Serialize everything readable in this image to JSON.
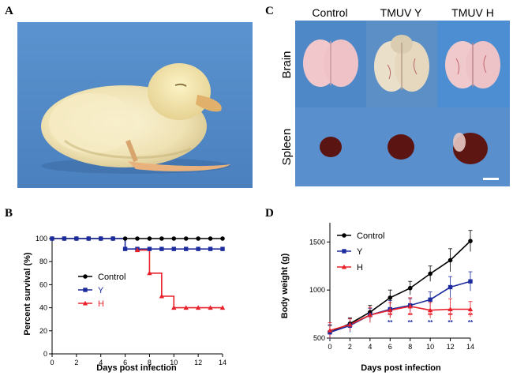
{
  "panel_letters": {
    "a": "A",
    "b": "B",
    "c": "C",
    "d": "D"
  },
  "panel_c": {
    "columns": [
      "Control",
      "TMUV Y",
      "TMUV H"
    ],
    "rows": [
      "Brain",
      "Spleen"
    ]
  },
  "colors": {
    "control": "#000000",
    "y": "#1c2b9e",
    "h": "#e8202a",
    "photo_bg": "#4f88c6"
  },
  "chart_data": [
    {
      "type": "line",
      "panel": "B",
      "xlabel": "Days post infection",
      "ylabel": "Percent survival (%)",
      "xlim": [
        0,
        14
      ],
      "ylim": [
        0,
        100
      ],
      "xticks": [
        0,
        2,
        4,
        6,
        8,
        10,
        12,
        14
      ],
      "yticks": [
        0,
        20,
        40,
        60,
        80,
        100
      ],
      "legend_position": "center",
      "step": true,
      "series": [
        {
          "name": "Control",
          "color": "#000000",
          "marker": "circle",
          "x": [
            0,
            1,
            2,
            3,
            4,
            5,
            6,
            7,
            8,
            9,
            10,
            11,
            12,
            13,
            14
          ],
          "y": [
            100,
            100,
            100,
            100,
            100,
            100,
            100,
            100,
            100,
            100,
            100,
            100,
            100,
            100,
            100
          ]
        },
        {
          "name": "Y",
          "color": "#1c2b9e",
          "marker": "square",
          "x": [
            0,
            1,
            2,
            3,
            4,
            5,
            6,
            7,
            8,
            9,
            10,
            11,
            12,
            13,
            14
          ],
          "y": [
            100,
            100,
            100,
            100,
            100,
            100,
            91,
            91,
            91,
            91,
            91,
            91,
            91,
            91,
            91
          ]
        },
        {
          "name": "H",
          "color": "#e8202a",
          "marker": "triangle",
          "x": [
            7,
            8,
            9,
            10,
            11,
            12,
            13,
            14
          ],
          "y": [
            90,
            70,
            50,
            40,
            40,
            40,
            40,
            40
          ]
        }
      ]
    },
    {
      "type": "line",
      "panel": "D",
      "xlabel": "Days post infection",
      "ylabel": "Body weight (g)",
      "xlim": [
        0,
        14
      ],
      "ylim": [
        500,
        1700
      ],
      "xticks": [
        0,
        2,
        4,
        6,
        8,
        10,
        12,
        14
      ],
      "yticks": [
        500,
        1000,
        1500
      ],
      "legend_position": "top-left",
      "x": [
        0,
        2,
        4,
        6,
        8,
        10,
        12,
        14
      ],
      "series": [
        {
          "name": "Control",
          "color": "#000000",
          "marker": "circle",
          "values": [
            560,
            650,
            770,
            920,
            1020,
            1170,
            1310,
            1510
          ],
          "errors": [
            70,
            60,
            70,
            80,
            70,
            80,
            120,
            110
          ]
        },
        {
          "name": "Y",
          "color": "#1c2b9e",
          "marker": "square",
          "values": [
            560,
            630,
            740,
            800,
            840,
            900,
            1030,
            1090
          ],
          "errors": [
            80,
            70,
            70,
            90,
            70,
            80,
            110,
            100
          ]
        },
        {
          "name": "H",
          "color": "#e8202a",
          "marker": "triangle",
          "values": [
            580,
            640,
            740,
            790,
            830,
            790,
            800,
            800
          ],
          "errors": [
            80,
            60,
            80,
            80,
            90,
            80,
            110,
            80
          ]
        }
      ],
      "significance": {
        "x": [
          6,
          8,
          10,
          12,
          14
        ],
        "rows": [
          {
            "color": "#e8202a",
            "labels": [
              "**",
              "**",
              "**",
              "**",
              "**"
            ]
          },
          {
            "color": "#1c2b9e",
            "labels": [
              "**",
              "**",
              "**",
              "**",
              "**"
            ]
          }
        ]
      }
    }
  ]
}
